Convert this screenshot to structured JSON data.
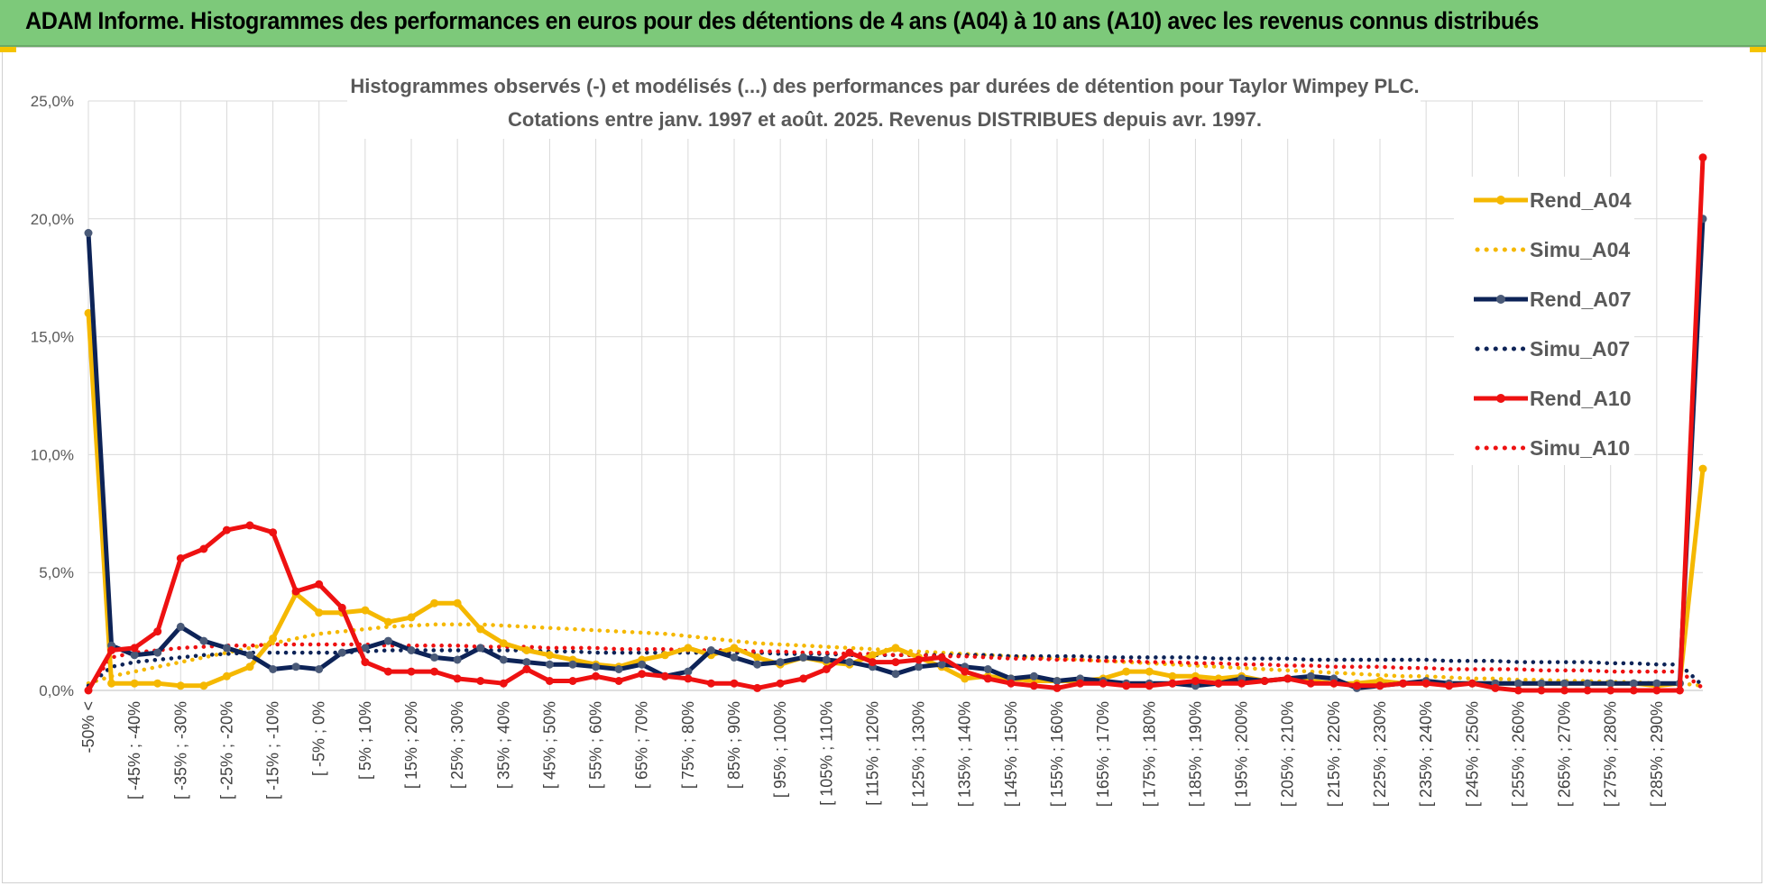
{
  "header": {
    "title": "ADAM Informe. Histogrammes des performances en euros pour des détentions de 4 ans (A04) à 10 ans (A10) avec les revenus connus distribués"
  },
  "colors": {
    "banner": "#7dc97a",
    "a04": "#f5b800",
    "a07": "#0d2357",
    "a07_marker": "#4a5a78",
    "a10": "#ee1111",
    "grid": "#d9d9d9"
  },
  "chart_data": {
    "type": "line",
    "title": "Histogrammes observés (-) et modélisés (...) des performances par durées de détention pour Taylor Wimpey PLC.",
    "subtitle": "Cotations entre janv. 1997 et août. 2025. Revenus DISTRIBUES depuis avr. 1997.",
    "ylim": [
      0,
      25
    ],
    "yticks": [
      "0,0%",
      "5,0%",
      "10,0%",
      "15,0%",
      "20,0%",
      "25,0%"
    ],
    "grid": true,
    "legend_position": "right",
    "x_tick_labels": [
      "-50% <",
      "[ -45% ; -40%",
      "[ -35% ; -30%",
      "[ -25% ; -20%",
      "[ -15% ; -10%",
      "[ -5% ; 0%",
      "[ 5% ; 10%",
      "[ 15% ; 20%",
      "[ 25% ; 30%",
      "[ 35% ; 40%",
      "[ 45% ; 50%",
      "[ 55% ; 60%",
      "[ 65% ; 70%",
      "[ 75% ; 80%",
      "[ 85% ; 90%",
      "[ 95% ; 100%",
      "[ 105% ; 110%",
      "[ 115% ; 120%",
      "[ 125% ; 130%",
      "[ 135% ; 140%",
      "[ 145% ; 150%",
      "[ 155% ; 160%",
      "[ 165% ; 170%",
      "[ 175% ; 180%",
      "[ 185% ; 190%",
      "[ 195% ; 200%",
      "[ 205% ; 210%",
      "[ 215% ; 220%",
      "[ 225% ; 230%",
      "[ 235% ; 240%",
      "[ 245% ; 250%",
      "[ 255% ; 260%",
      "[ 265% ; 270%",
      "[ 275% ; 280%",
      "[ 285% ; 290%"
    ],
    "series": [
      {
        "name": "Rend_A04",
        "style": "solid",
        "values": [
          16.0,
          0.3,
          0.3,
          0.3,
          0.2,
          0.2,
          0.6,
          1.0,
          2.2,
          4.1,
          3.3,
          3.3,
          3.4,
          2.9,
          3.1,
          3.7,
          3.7,
          2.6,
          2.0,
          1.7,
          1.5,
          1.3,
          1.1,
          1.0,
          1.3,
          1.5,
          1.8,
          1.5,
          1.8,
          1.4,
          1.1,
          1.4,
          1.2,
          1.1,
          1.5,
          1.8,
          1.4,
          1.0,
          0.5,
          0.6,
          0.5,
          0.4,
          0.4,
          0.4,
          0.5,
          0.8,
          0.8,
          0.6,
          0.6,
          0.5,
          0.6,
          0.4,
          0.5,
          0.4,
          0.3,
          0.3,
          0.4,
          0.3,
          0.3,
          0.3,
          0.3,
          0.3,
          0.3,
          0.3,
          0.3,
          0.3,
          0.3,
          0.3,
          0.2,
          0.3,
          9.4
        ]
      },
      {
        "name": "Simu_A04",
        "style": "dotted",
        "values": [
          0.3,
          0.6,
          0.8,
          1.0,
          1.2,
          1.4,
          1.6,
          1.8,
          2.0,
          2.2,
          2.4,
          2.5,
          2.6,
          2.7,
          2.75,
          2.8,
          2.8,
          2.8,
          2.75,
          2.7,
          2.65,
          2.6,
          2.55,
          2.5,
          2.45,
          2.4,
          2.3,
          2.2,
          2.1,
          2.0,
          1.95,
          1.9,
          1.85,
          1.8,
          1.75,
          1.7,
          1.65,
          1.6,
          1.55,
          1.5,
          1.45,
          1.4,
          1.35,
          1.3,
          1.25,
          1.2,
          1.15,
          1.1,
          1.05,
          1.0,
          0.95,
          0.9,
          0.85,
          0.8,
          0.75,
          0.7,
          0.65,
          0.6,
          0.6,
          0.55,
          0.5,
          0.5,
          0.45,
          0.45,
          0.4,
          0.4,
          0.35,
          0.35,
          0.3,
          0.3,
          0.2
        ]
      },
      {
        "name": "Rend_A07",
        "style": "solid",
        "values": [
          19.4,
          1.9,
          1.5,
          1.6,
          2.7,
          2.1,
          1.8,
          1.5,
          0.9,
          1.0,
          0.9,
          1.6,
          1.8,
          2.1,
          1.7,
          1.4,
          1.3,
          1.8,
          1.3,
          1.2,
          1.1,
          1.1,
          1.0,
          0.9,
          1.1,
          0.6,
          0.8,
          1.7,
          1.4,
          1.1,
          1.2,
          1.4,
          1.3,
          1.2,
          1.0,
          0.7,
          1.0,
          1.1,
          1.0,
          0.9,
          0.5,
          0.6,
          0.4,
          0.5,
          0.4,
          0.3,
          0.3,
          0.3,
          0.2,
          0.3,
          0.5,
          0.4,
          0.5,
          0.6,
          0.5,
          0.1,
          0.2,
          0.3,
          0.4,
          0.3,
          0.3,
          0.3,
          0.3,
          0.3,
          0.3,
          0.3,
          0.3,
          0.3,
          0.3,
          0.3,
          20.0
        ]
      },
      {
        "name": "Simu_A07",
        "style": "dotted",
        "values": [
          0.2,
          1.0,
          1.2,
          1.3,
          1.4,
          1.5,
          1.55,
          1.6,
          1.6,
          1.6,
          1.6,
          1.6,
          1.65,
          1.7,
          1.7,
          1.7,
          1.7,
          1.7,
          1.7,
          1.7,
          1.65,
          1.65,
          1.6,
          1.6,
          1.6,
          1.6,
          1.6,
          1.6,
          1.6,
          1.6,
          1.55,
          1.55,
          1.55,
          1.5,
          1.5,
          1.5,
          1.5,
          1.5,
          1.5,
          1.5,
          1.45,
          1.45,
          1.45,
          1.45,
          1.4,
          1.4,
          1.4,
          1.4,
          1.4,
          1.35,
          1.35,
          1.35,
          1.35,
          1.3,
          1.3,
          1.3,
          1.3,
          1.3,
          1.3,
          1.25,
          1.25,
          1.25,
          1.2,
          1.2,
          1.2,
          1.2,
          1.15,
          1.15,
          1.1,
          1.1,
          0.2
        ]
      },
      {
        "name": "Rend_A10",
        "style": "solid",
        "values": [
          0.0,
          1.7,
          1.8,
          2.5,
          5.6,
          6.0,
          6.8,
          7.0,
          6.7,
          4.2,
          4.5,
          3.5,
          1.2,
          0.8,
          0.8,
          0.8,
          0.5,
          0.4,
          0.3,
          0.9,
          0.4,
          0.4,
          0.6,
          0.4,
          0.7,
          0.6,
          0.5,
          0.3,
          0.3,
          0.1,
          0.3,
          0.5,
          0.9,
          1.6,
          1.2,
          1.2,
          1.3,
          1.4,
          0.8,
          0.5,
          0.3,
          0.2,
          0.1,
          0.3,
          0.3,
          0.2,
          0.2,
          0.3,
          0.4,
          0.3,
          0.3,
          0.4,
          0.5,
          0.3,
          0.3,
          0.2,
          0.2,
          0.3,
          0.3,
          0.2,
          0.3,
          0.1,
          0.0,
          0.0,
          0.0,
          0.0,
          0.0,
          0.0,
          0.0,
          0.0,
          22.6
        ]
      },
      {
        "name": "Simu_A10",
        "style": "dotted",
        "values": [
          0.1,
          1.4,
          1.6,
          1.7,
          1.8,
          1.85,
          1.9,
          1.9,
          1.95,
          1.95,
          1.95,
          1.95,
          1.95,
          1.9,
          1.9,
          1.9,
          1.9,
          1.85,
          1.85,
          1.85,
          1.8,
          1.8,
          1.8,
          1.75,
          1.75,
          1.75,
          1.7,
          1.7,
          1.7,
          1.65,
          1.65,
          1.6,
          1.6,
          1.55,
          1.55,
          1.5,
          1.5,
          1.45,
          1.45,
          1.4,
          1.35,
          1.35,
          1.3,
          1.3,
          1.25,
          1.25,
          1.2,
          1.2,
          1.15,
          1.15,
          1.1,
          1.1,
          1.05,
          1.05,
          1.0,
          1.0,
          1.0,
          0.95,
          0.95,
          0.9,
          0.9,
          0.9,
          0.9,
          0.85,
          0.85,
          0.85,
          0.8,
          0.8,
          0.8,
          0.8,
          0.1
        ]
      }
    ]
  }
}
